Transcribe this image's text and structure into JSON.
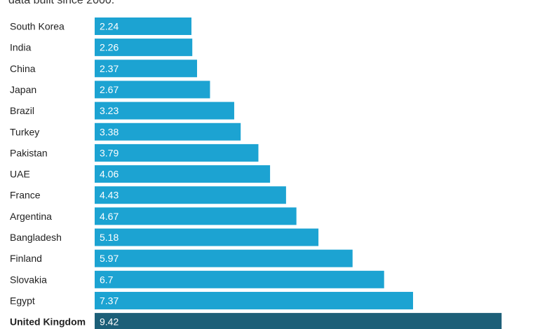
{
  "subtitle": "data built since 2000.",
  "chart_data": {
    "type": "bar",
    "orientation": "horizontal",
    "categories": [
      "South Korea",
      "India",
      "China",
      "Japan",
      "Brazil",
      "Turkey",
      "Pakistan",
      "UAE",
      "France",
      "Argentina",
      "Bangladesh",
      "Finland",
      "Slovakia",
      "Egypt",
      "United Kingdom"
    ],
    "values": [
      2.24,
      2.26,
      2.37,
      2.67,
      3.23,
      3.38,
      3.79,
      4.06,
      4.43,
      4.67,
      5.18,
      5.97,
      6.7,
      7.37,
      9.42
    ],
    "value_labels": [
      "2.24",
      "2.26",
      "2.37",
      "2.67",
      "3.23",
      "3.38",
      "3.79",
      "4.06",
      "4.43",
      "4.67",
      "5.18",
      "5.97",
      "6.7",
      "7.37",
      "9.42"
    ],
    "highlight": "United Kingdom",
    "colors": {
      "bar": "#1ca3d2",
      "highlight_bar": "#1c5f78",
      "value_text": "#ffffff",
      "category_text": "#222222"
    },
    "grid": false,
    "legend": "none"
  }
}
